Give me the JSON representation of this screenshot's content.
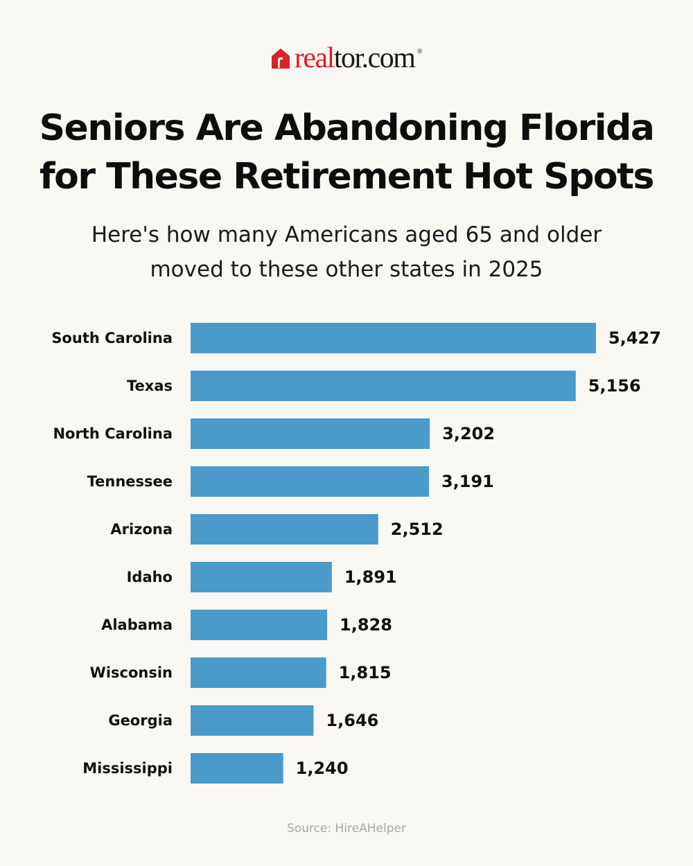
{
  "brand": {
    "logo_accent": "real",
    "logo_rest": "tor.com",
    "logo_tm": "®",
    "accent_color": "#d92228"
  },
  "header": {
    "title_line1": "Seniors Are Abandoning Florida",
    "title_line2": "for These Retirement Hot Spots",
    "subtitle_line1": "Here's how many Americans aged 65 and older",
    "subtitle_line2": "moved to these other states in 2025"
  },
  "chart_data": {
    "type": "bar",
    "orientation": "horizontal",
    "title": "Seniors Are Abandoning Florida for These Retirement Hot Spots",
    "subtitle": "Here's how many Americans aged 65 and older moved to these other states in 2025",
    "categories": [
      "South Carolina",
      "Texas",
      "North Carolina",
      "Tennessee",
      "Arizona",
      "Idaho",
      "Alabama",
      "Wisconsin",
      "Georgia",
      "Mississippi"
    ],
    "values": [
      5427,
      5156,
      3202,
      3191,
      2512,
      1891,
      1828,
      1815,
      1646,
      1240
    ],
    "value_labels": [
      "5,427",
      "5,156",
      "3,202",
      "3,191",
      "2,512",
      "1,891",
      "1,828",
      "1,815",
      "1,646",
      "1,240"
    ],
    "bar_color": "#4a9acb",
    "grid": false,
    "legend": "none",
    "xlim": [
      0,
      5427
    ]
  },
  "footer": {
    "source": "Source: HireAHelper"
  }
}
